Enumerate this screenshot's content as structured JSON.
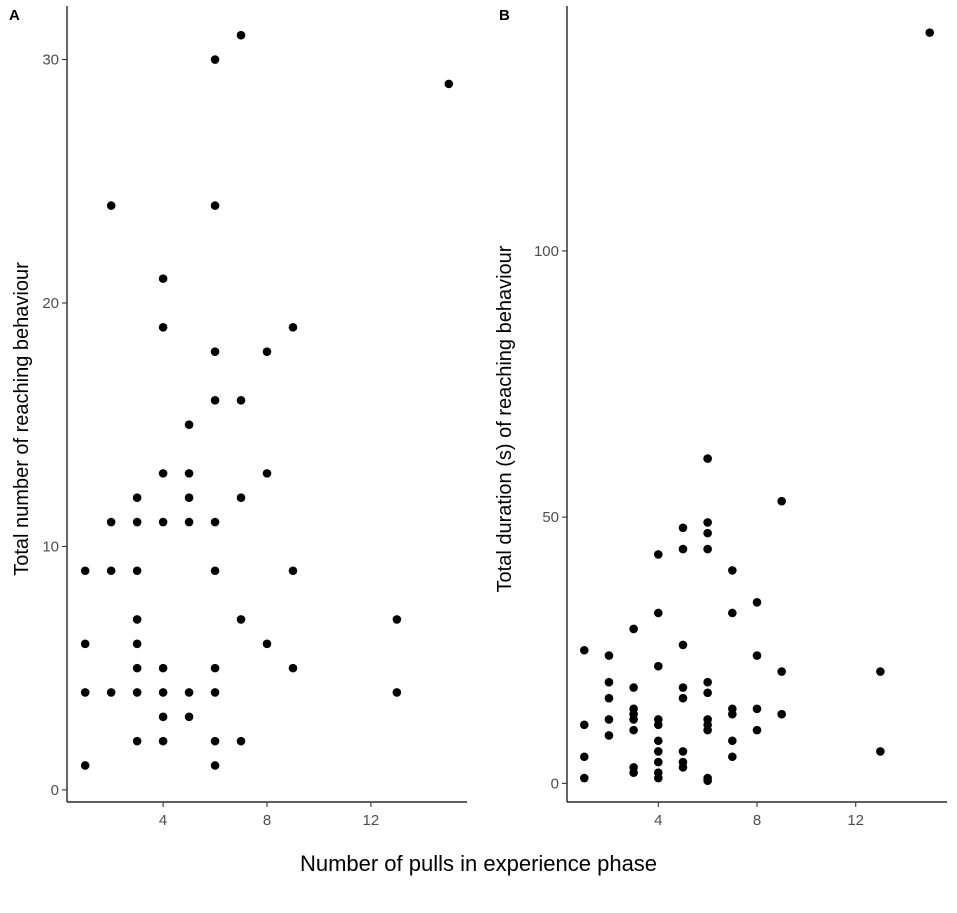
{
  "figure": {
    "shared_xlabel": "Number of pulls in experience phase"
  },
  "chart_data": [
    {
      "type": "scatter",
      "panel": "A",
      "title": "",
      "xlabel": "",
      "ylabel": "Total number of reaching behaviour",
      "xlim": [
        0.3,
        15.7
      ],
      "ylim": [
        -0.5,
        32.2
      ],
      "xticks": [
        4,
        8,
        12
      ],
      "yticks": [
        0,
        10,
        20,
        30
      ],
      "grid": false,
      "points": [
        [
          1,
          1
        ],
        [
          1,
          4
        ],
        [
          1,
          6
        ],
        [
          1,
          9
        ],
        [
          2,
          4
        ],
        [
          2,
          9
        ],
        [
          2,
          11
        ],
        [
          2,
          24
        ],
        [
          3,
          2
        ],
        [
          3,
          4
        ],
        [
          3,
          5
        ],
        [
          3,
          6
        ],
        [
          3,
          7
        ],
        [
          3,
          9
        ],
        [
          3,
          11
        ],
        [
          3,
          12
        ],
        [
          4,
          2
        ],
        [
          4,
          3
        ],
        [
          4,
          4
        ],
        [
          4,
          5
        ],
        [
          4,
          11
        ],
        [
          4,
          13
        ],
        [
          4,
          19
        ],
        [
          4,
          21
        ],
        [
          5,
          3
        ],
        [
          5,
          4
        ],
        [
          5,
          11
        ],
        [
          5,
          12
        ],
        [
          5,
          13
        ],
        [
          5,
          15
        ],
        [
          6,
          1
        ],
        [
          6,
          2
        ],
        [
          6,
          4
        ],
        [
          6,
          5
        ],
        [
          6,
          9
        ],
        [
          6,
          11
        ],
        [
          6,
          16
        ],
        [
          6,
          18
        ],
        [
          6,
          24
        ],
        [
          6,
          30
        ],
        [
          7,
          2
        ],
        [
          7,
          7
        ],
        [
          7,
          12
        ],
        [
          7,
          16
        ],
        [
          7,
          31
        ],
        [
          8,
          6
        ],
        [
          8,
          13
        ],
        [
          8,
          18
        ],
        [
          9,
          5
        ],
        [
          9,
          9
        ],
        [
          9,
          19
        ],
        [
          13,
          4
        ],
        [
          13,
          7
        ],
        [
          15,
          29
        ]
      ]
    },
    {
      "type": "scatter",
      "panel": "B",
      "title": "",
      "xlabel": "",
      "ylabel": "Total duration (s) of reaching behaviour",
      "xlim": [
        0.3,
        15.7
      ],
      "ylim": [
        -3.5,
        146
      ],
      "xticks": [
        4,
        8,
        12
      ],
      "yticks": [
        0,
        50,
        100
      ],
      "grid": false,
      "points": [
        [
          1,
          1
        ],
        [
          1,
          5
        ],
        [
          1,
          11
        ],
        [
          1,
          25
        ],
        [
          2,
          9
        ],
        [
          2,
          12
        ],
        [
          2,
          16
        ],
        [
          2,
          19
        ],
        [
          2,
          24
        ],
        [
          3,
          2
        ],
        [
          3,
          3
        ],
        [
          3,
          10
        ],
        [
          3,
          12
        ],
        [
          3,
          13
        ],
        [
          3,
          14
        ],
        [
          3,
          18
        ],
        [
          3,
          29
        ],
        [
          4,
          1
        ],
        [
          4,
          2
        ],
        [
          4,
          4
        ],
        [
          4,
          6
        ],
        [
          4,
          8
        ],
        [
          4,
          11
        ],
        [
          4,
          12
        ],
        [
          4,
          22
        ],
        [
          4,
          32
        ],
        [
          4,
          43
        ],
        [
          5,
          3
        ],
        [
          5,
          4
        ],
        [
          5,
          6
        ],
        [
          5,
          16
        ],
        [
          5,
          18
        ],
        [
          5,
          26
        ],
        [
          5,
          44
        ],
        [
          5,
          48
        ],
        [
          6,
          0.5
        ],
        [
          6,
          1
        ],
        [
          6,
          10
        ],
        [
          6,
          11
        ],
        [
          6,
          12
        ],
        [
          6,
          17
        ],
        [
          6,
          19
        ],
        [
          6,
          44
        ],
        [
          6,
          47
        ],
        [
          6,
          49
        ],
        [
          6,
          61
        ],
        [
          7,
          5
        ],
        [
          7,
          8
        ],
        [
          7,
          13
        ],
        [
          7,
          14
        ],
        [
          7,
          32
        ],
        [
          7,
          40
        ],
        [
          8,
          10
        ],
        [
          8,
          14
        ],
        [
          8,
          24
        ],
        [
          8,
          34
        ],
        [
          9,
          13
        ],
        [
          9,
          21
        ],
        [
          9,
          53
        ],
        [
          13,
          6
        ],
        [
          13,
          21
        ],
        [
          15,
          141
        ]
      ]
    }
  ]
}
